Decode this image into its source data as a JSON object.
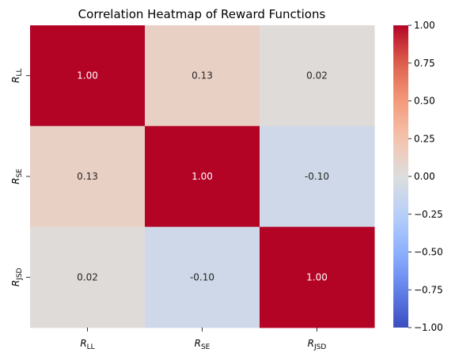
{
  "chart_data": {
    "type": "heatmap",
    "title": "Correlation Heatmap of Reward Functions",
    "row_labels": [
      {
        "main": "R",
        "sub": "LL"
      },
      {
        "main": "R",
        "sub": "SE"
      },
      {
        "main": "R",
        "sub": "JSD"
      }
    ],
    "col_labels": [
      {
        "main": "R",
        "sub": "LL"
      },
      {
        "main": "R",
        "sub": "SE"
      },
      {
        "main": "R",
        "sub": "JSD"
      }
    ],
    "values": [
      [
        1.0,
        0.13,
        0.02
      ],
      [
        0.13,
        1.0,
        -0.1
      ],
      [
        0.02,
        -0.1,
        1.0
      ]
    ],
    "value_labels": [
      [
        "1.00",
        "0.13",
        "0.02"
      ],
      [
        "0.13",
        "1.00",
        "-0.10"
      ],
      [
        "0.02",
        "-0.10",
        "1.00"
      ]
    ],
    "colormap": "coolwarm",
    "vmin": -1.0,
    "vmax": 1.0,
    "colorbar_ticks": [
      {
        "value": 1.0,
        "label": "1.00"
      },
      {
        "value": 0.75,
        "label": "0.75"
      },
      {
        "value": 0.5,
        "label": "0.50"
      },
      {
        "value": 0.25,
        "label": "0.25"
      },
      {
        "value": 0.0,
        "label": "0.00"
      },
      {
        "value": -0.25,
        "label": "−0.25"
      },
      {
        "value": -0.5,
        "label": "−0.50"
      },
      {
        "value": -0.75,
        "label": "−0.75"
      },
      {
        "value": -1.0,
        "label": "−1.00"
      }
    ],
    "grid": false,
    "legend": "colorbar-right"
  }
}
